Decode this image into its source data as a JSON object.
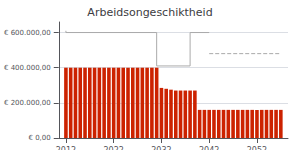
{
  "chart_data": {
    "type": "bar",
    "title": "Arbeidsongeschiktheid",
    "x": [
      2012,
      2013,
      2014,
      2015,
      2016,
      2017,
      2018,
      2019,
      2020,
      2021,
      2022,
      2023,
      2024,
      2025,
      2026,
      2027,
      2028,
      2029,
      2030,
      2031,
      2032,
      2033,
      2034,
      2035,
      2036,
      2037,
      2038,
      2039,
      2040,
      2041,
      2042,
      2043,
      2044,
      2045,
      2046,
      2047,
      2048,
      2049,
      2050,
      2051,
      2052,
      2053,
      2054,
      2055,
      2056,
      2057
    ],
    "series": [
      {
        "type": "bar",
        "color": "#CC2200",
        "values": [
          400000,
          400000,
          400000,
          400000,
          400000,
          400000,
          400000,
          400000,
          400000,
          400000,
          400000,
          400000,
          400000,
          400000,
          400000,
          400000,
          400000,
          400000,
          400000,
          400000,
          285000,
          280000,
          275000,
          270000,
          270000,
          270000,
          270000,
          270000,
          160000,
          160000,
          160000,
          160000,
          160000,
          160000,
          160000,
          160000,
          160000,
          160000,
          160000,
          160000,
          160000,
          160000,
          160000,
          160000,
          160000,
          160000
        ]
      },
      {
        "type": "line",
        "color": "#AAAAAA",
        "line_style": "solid",
        "x": [
          2012,
          2012,
          2031,
          2031,
          2038,
          2038,
          2042,
          2042
        ],
        "values": [
          610000,
          600000,
          600000,
          410000,
          410000,
          600000,
          600000,
          600000
        ]
      },
      {
        "type": "line",
        "color": "#AAAAAA",
        "line_style": "dashed",
        "x": [
          2042,
          2057
        ],
        "values": [
          480000,
          480000
        ]
      }
    ],
    "xlim": [
      2010.5,
      2058.5
    ],
    "xticks": [
      2012,
      2022,
      2032,
      2042,
      2052
    ],
    "ylim": [
      0,
      660000
    ],
    "yticks": [
      {
        "value": 0,
        "label": "€ 0,00"
      },
      {
        "value": 200000,
        "label": "€ 200.000,00"
      },
      {
        "value": 400000,
        "label": "€ 400.000,00"
      },
      {
        "value": 600000,
        "label": "€ 600.000,00"
      }
    ],
    "grid": true
  }
}
